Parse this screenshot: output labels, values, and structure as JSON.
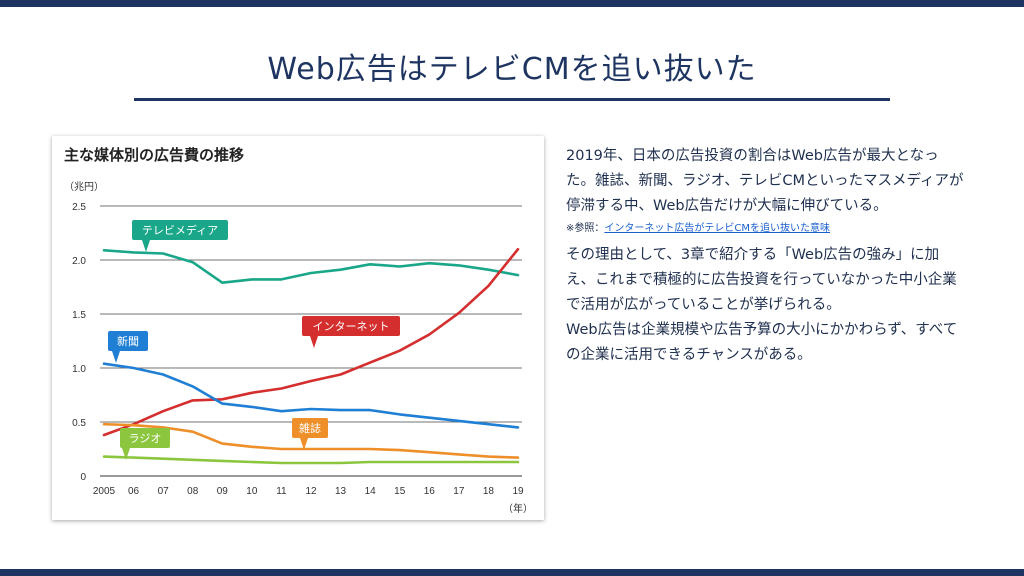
{
  "slide": {
    "title": "Web広告はテレビCMを追い抜いた"
  },
  "text": {
    "para1": "2019年、日本の広告投資の割合はWeb広告が最大となった。雑誌、新聞、ラジオ、テレビCMといったマスメディアが停滞する中、Web広告だけが大幅に伸びている。",
    "ref_prefix": "※参照：",
    "ref_link": "インターネット広告がテレビCMを追い抜いた意味",
    "para2": "その理由として、3章で紹介する「Web広告の強み」に加え、これまで積極的に広告投資を行っていなかった中小企業で活用が広がっていることが挙げられる。",
    "para3": "Web広告は企業規模や広告予算の大小にかかわらず、すべての企業に活用できるチャンスがある。"
  },
  "colors": {
    "navy": "#1e3461",
    "tv": "#1aa688",
    "internet": "#d42e2e",
    "newspaper": "#1f7fd4",
    "magazine": "#ee8f2a",
    "radio": "#8cc63f"
  },
  "chart_data": {
    "type": "line",
    "title": "主な媒体別の広告費の推移",
    "ylabel": "（兆円）",
    "xlabel": "（年）",
    "ylim": [
      0,
      2.5
    ],
    "yticks": [
      "0",
      "0.5",
      "1.0",
      "1.5",
      "2.0",
      "2.5"
    ],
    "x": [
      "2005",
      "06",
      "07",
      "08",
      "09",
      "10",
      "11",
      "12",
      "13",
      "14",
      "15",
      "16",
      "17",
      "18",
      "19"
    ],
    "grid": true,
    "series": [
      {
        "name": "テレビメディア",
        "color": "#1aa688",
        "values": [
          2.09,
          2.07,
          2.06,
          1.98,
          1.79,
          1.82,
          1.82,
          1.88,
          1.91,
          1.96,
          1.94,
          1.97,
          1.95,
          1.91,
          1.86
        ]
      },
      {
        "name": "インターネット",
        "color": "#d42e2e",
        "values": [
          0.38,
          0.48,
          0.6,
          0.7,
          0.71,
          0.77,
          0.81,
          0.88,
          0.94,
          1.05,
          1.16,
          1.31,
          1.51,
          1.76,
          2.1
        ]
      },
      {
        "name": "新聞",
        "color": "#1f7fd4",
        "values": [
          1.04,
          1.0,
          0.94,
          0.83,
          0.67,
          0.64,
          0.6,
          0.62,
          0.61,
          0.61,
          0.57,
          0.54,
          0.51,
          0.48,
          0.45
        ]
      },
      {
        "name": "雑誌",
        "color": "#ee8f2a",
        "values": [
          0.48,
          0.47,
          0.45,
          0.41,
          0.3,
          0.27,
          0.25,
          0.25,
          0.25,
          0.25,
          0.24,
          0.22,
          0.2,
          0.18,
          0.17
        ]
      },
      {
        "name": "ラジオ",
        "color": "#8cc63f",
        "values": [
          0.18,
          0.17,
          0.16,
          0.15,
          0.14,
          0.13,
          0.12,
          0.12,
          0.12,
          0.13,
          0.13,
          0.13,
          0.13,
          0.13,
          0.13
        ]
      }
    ]
  }
}
